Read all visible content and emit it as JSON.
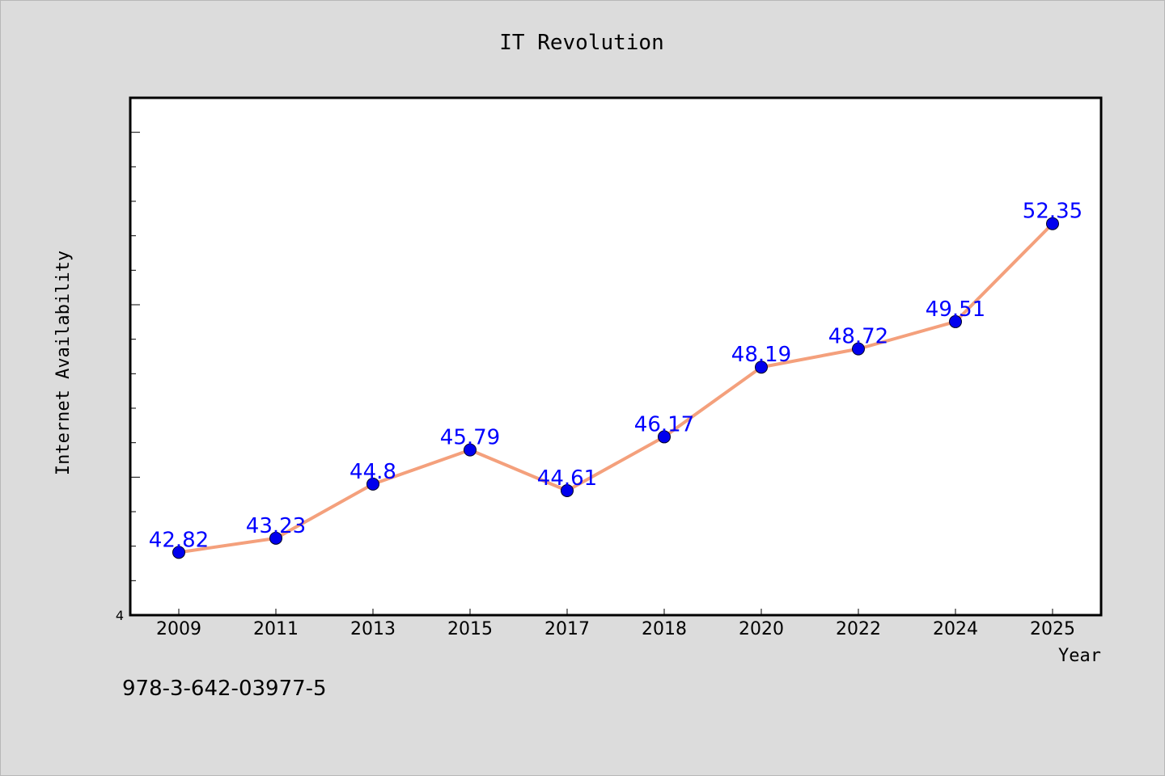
{
  "chart_data": {
    "type": "line",
    "title": "IT Revolution",
    "xlabel": "Year",
    "ylabel": "Internet Availability",
    "categories": [
      "2009",
      "2011",
      "2013",
      "2015",
      "2017",
      "2018",
      "2020",
      "2022",
      "2024",
      "2025"
    ],
    "series": [
      {
        "values": [
          42.82,
          43.23,
          44.8,
          45.79,
          44.61,
          46.17,
          48.19,
          48.72,
          49.51,
          52.35
        ]
      }
    ],
    "data_labels": [
      "42.82",
      "43.23",
      "44.8",
      "45.79",
      "44.61",
      "46.17",
      "48.19",
      "48.72",
      "49.51",
      "52.35"
    ],
    "ytick_labels": [
      "4"
    ],
    "ylim": [
      41,
      56
    ],
    "ytick_minor_step": 1,
    "grid": false,
    "legend": "none",
    "colors": {
      "line": "#f4a07c",
      "marker": "#0000ee",
      "label": "#0000ff",
      "background": "#dcdcdc",
      "plot_background": "#ffffff"
    }
  },
  "footer": {
    "code": "978-3-642-03977-5"
  }
}
